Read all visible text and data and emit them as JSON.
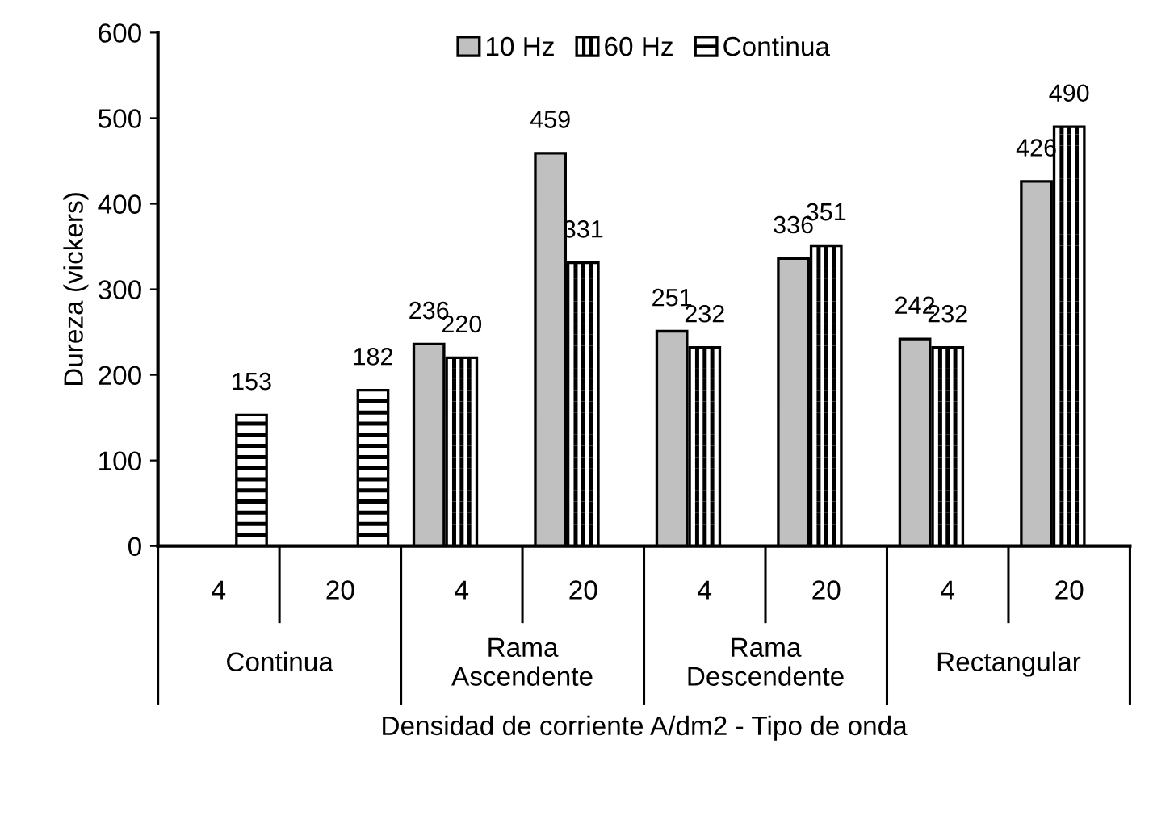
{
  "chart_data": {
    "type": "bar",
    "xlabel": "Densidad de corriente A/dm2 - Tipo de onda",
    "ylabel": "Dureza (vickers)",
    "categories": [
      "4",
      "20",
      "4",
      "20",
      "4",
      "20",
      "4",
      "20"
    ],
    "series": [
      {
        "name": "10 Hz",
        "color": "#c0c0c0",
        "values": [
          null,
          null,
          236,
          459,
          251,
          336,
          242,
          426
        ]
      },
      {
        "name": "60 Hz",
        "color": "#ffffff",
        "values": [
          null,
          null,
          220,
          331,
          232,
          351,
          232,
          490
        ]
      },
      {
        "name": "Continua",
        "color": "#ffffff",
        "values": [
          153,
          182,
          null,
          null,
          null,
          null,
          null,
          null
        ]
      }
    ],
    "annotations": [
      "Continua",
      "Rama\nAscendente",
      "Rama\nDescendente",
      "Rectangular"
    ],
    "ylim": [
      0,
      600
    ],
    "yticks": [
      0,
      100,
      200,
      300,
      400,
      500,
      600
    ],
    "data_labels": true,
    "legend": "top",
    "grid": false
  }
}
